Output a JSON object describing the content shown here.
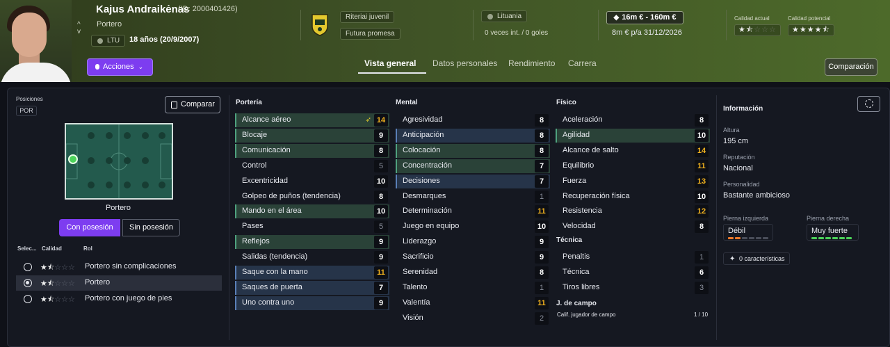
{
  "player": {
    "name": "Kajus Andraikėnas",
    "id_text": "(ID: 2000401426)",
    "position": "Portero",
    "nation_code": "LTU",
    "age_text": "18 años (20/9/2007)",
    "chevron_up": "^",
    "chevron_down": "v"
  },
  "club": {
    "team": "Riteriai juvenil",
    "status": "Futura promesa",
    "country": "Lituania",
    "intl": "0 veces int. / 0 goles"
  },
  "value": {
    "range": "16m € - 160m €",
    "wage": "8m € p/a 31/12/2026"
  },
  "quality": {
    "current_label": "Calidad actual",
    "potential_label": "Calidad potencial",
    "current_stars": 1.5,
    "potential_stars": 4.5
  },
  "actions_label": "Acciones",
  "tabs": [
    "Vista general",
    "Datos personales",
    "Rendimiento",
    "Carrera"
  ],
  "comparison_label": "Comparación",
  "positions": {
    "title": "Posiciones",
    "badge": "POR",
    "compare_label": "Comparar",
    "pitch_label": "Portero",
    "with_ball": "Con posesión",
    "without_ball": "Sin posesión",
    "col_select": "Selec...",
    "col_quality": "Calidad",
    "col_role": "Rol",
    "roles": [
      {
        "name": "Portero sin complicaciones",
        "stars": 1.5,
        "selected": false
      },
      {
        "name": "Portero",
        "stars": 1.5,
        "selected": true
      },
      {
        "name": "Portero con juego de pies",
        "stars": 1.5,
        "selected": false
      }
    ]
  },
  "goalkeeping": {
    "title": "Portería",
    "attrs": [
      {
        "name": "Alcance aéreo",
        "value": "14",
        "tone": "y",
        "hl": "g",
        "trend": true
      },
      {
        "name": "Blocaje",
        "value": "9",
        "tone": "w",
        "hl": "g"
      },
      {
        "name": "Comunicación",
        "value": "8",
        "tone": "w",
        "hl": "g"
      },
      {
        "name": "Control",
        "value": "5",
        "tone": "g",
        "hl": ""
      },
      {
        "name": "Excentricidad",
        "value": "10",
        "tone": "w",
        "hl": ""
      },
      {
        "name": "Golpeo de puños (tendencia)",
        "value": "8",
        "tone": "w",
        "hl": ""
      },
      {
        "name": "Mando en el área",
        "value": "10",
        "tone": "w",
        "hl": "g"
      },
      {
        "name": "Pases",
        "value": "5",
        "tone": "g",
        "hl": ""
      },
      {
        "name": "Reflejos",
        "value": "9",
        "tone": "w",
        "hl": "g"
      },
      {
        "name": "Salidas (tendencia)",
        "value": "9",
        "tone": "w",
        "hl": ""
      },
      {
        "name": "Saque con la mano",
        "value": "11",
        "tone": "y",
        "hl": "b"
      },
      {
        "name": "Saques de puerta",
        "value": "7",
        "tone": "w",
        "hl": "b"
      },
      {
        "name": "Uno contra uno",
        "value": "9",
        "tone": "w",
        "hl": "b"
      }
    ]
  },
  "mental": {
    "title": "Mental",
    "attrs": [
      {
        "name": "Agresividad",
        "value": "8",
        "tone": "w",
        "hl": ""
      },
      {
        "name": "Anticipación",
        "value": "8",
        "tone": "w",
        "hl": "b"
      },
      {
        "name": "Colocación",
        "value": "8",
        "tone": "w",
        "hl": "g"
      },
      {
        "name": "Concentración",
        "value": "7",
        "tone": "w",
        "hl": "g"
      },
      {
        "name": "Decisiones",
        "value": "7",
        "tone": "w",
        "hl": "b"
      },
      {
        "name": "Desmarques",
        "value": "1",
        "tone": "g",
        "hl": ""
      },
      {
        "name": "Determinación",
        "value": "11",
        "tone": "y",
        "hl": ""
      },
      {
        "name": "Juego en equipo",
        "value": "10",
        "tone": "w",
        "hl": ""
      },
      {
        "name": "Liderazgo",
        "value": "9",
        "tone": "w",
        "hl": ""
      },
      {
        "name": "Sacrificio",
        "value": "9",
        "tone": "w",
        "hl": ""
      },
      {
        "name": "Serenidad",
        "value": "8",
        "tone": "w",
        "hl": ""
      },
      {
        "name": "Talento",
        "value": "1",
        "tone": "g",
        "hl": ""
      },
      {
        "name": "Valentía",
        "value": "11",
        "tone": "y",
        "hl": ""
      },
      {
        "name": "Visión",
        "value": "2",
        "tone": "g",
        "hl": ""
      }
    ]
  },
  "physical": {
    "title": "Físico",
    "attrs": [
      {
        "name": "Aceleración",
        "value": "8",
        "tone": "w",
        "hl": ""
      },
      {
        "name": "Agilidad",
        "value": "10",
        "tone": "w",
        "hl": "g"
      },
      {
        "name": "Alcance de salto",
        "value": "14",
        "tone": "y",
        "hl": ""
      },
      {
        "name": "Equilibrio",
        "value": "11",
        "tone": "y",
        "hl": ""
      },
      {
        "name": "Fuerza",
        "value": "13",
        "tone": "y",
        "hl": ""
      },
      {
        "name": "Recuperación física",
        "value": "10",
        "tone": "w",
        "hl": ""
      },
      {
        "name": "Resistencia",
        "value": "12",
        "tone": "y",
        "hl": ""
      },
      {
        "name": "Velocidad",
        "value": "8",
        "tone": "w",
        "hl": ""
      }
    ]
  },
  "technical": {
    "title": "Técnica",
    "attrs": [
      {
        "name": "Penaltis",
        "value": "1",
        "tone": "g",
        "hl": ""
      },
      {
        "name": "Técnica",
        "value": "6",
        "tone": "w",
        "hl": ""
      },
      {
        "name": "Tiros libres",
        "value": "3",
        "tone": "g",
        "hl": ""
      }
    ]
  },
  "outfield": {
    "title": "J. de campo",
    "rating_label": "Calif. jugador de campo",
    "rating_value": "1 / 10"
  },
  "info": {
    "title": "Información",
    "height_label": "Altura",
    "height": "195 cm",
    "reputation_label": "Reputación",
    "reputation": "Nacional",
    "personality_label": "Personalidad",
    "personality": "Bastante ambicioso",
    "left_foot_label": "Pierna izquierda",
    "left_foot": "Débil",
    "left_foot_level": 2,
    "right_foot_label": "Pierna derecha",
    "right_foot": "Muy fuerte",
    "right_foot_level": 5,
    "traits": "0 características"
  },
  "colors": {
    "accent": "#7d3df0",
    "good": "#f2b21e",
    "strong_foot": "#4cd35a",
    "weak_foot": "#f07a2a"
  }
}
